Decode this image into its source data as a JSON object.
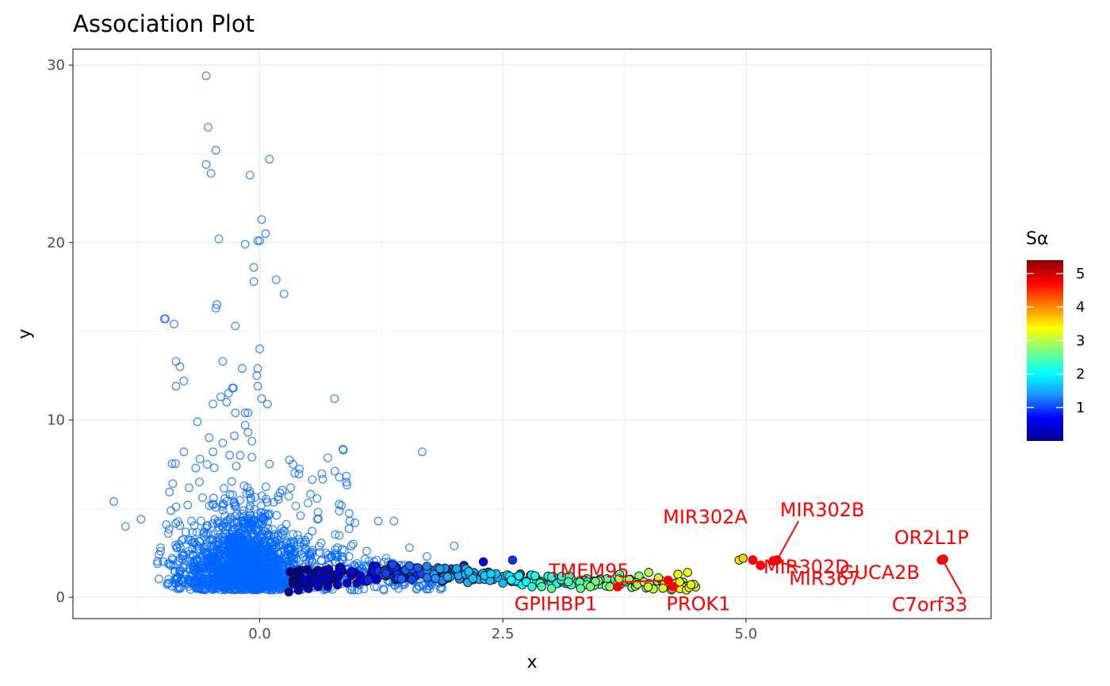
{
  "chart_data": {
    "type": "scatter",
    "title": "Association Plot",
    "xlabel": "x",
    "ylabel": "y",
    "xlim": [
      -1.92,
      7.52
    ],
    "ylim": [
      -1.2,
      30.9
    ],
    "x_ticks": [
      0.0,
      2.5,
      5.0
    ],
    "x_tick_labels": [
      "0.0",
      "2.5",
      "5.0"
    ],
    "y_ticks": [
      0,
      10,
      20,
      30
    ],
    "y_tick_labels": [
      "0",
      "10",
      "20",
      "30"
    ],
    "grid": true,
    "legend": {
      "title": "Sα",
      "placement": "right",
      "type": "colorbar",
      "range": [
        0,
        5.4
      ],
      "ticks": [
        1,
        2,
        3,
        4,
        5
      ],
      "tick_labels": [
        "1",
        "2",
        "3",
        "4",
        "5"
      ],
      "colors": [
        "#00008b",
        "#0000ff",
        "#1e90ff",
        "#00ffff",
        "#7fff7f",
        "#ffff00",
        "#ff7f00",
        "#ff0000",
        "#8b0000"
      ]
    },
    "background_points_color": "#0066ff",
    "background_points": [
      [
        -0.55,
        29.4
      ],
      [
        -0.53,
        26.5
      ],
      [
        -0.45,
        25.2
      ],
      [
        0.1,
        24.7
      ],
      [
        -0.55,
        24.4
      ],
      [
        -0.5,
        23.9
      ],
      [
        -0.1,
        23.8
      ],
      [
        0.02,
        21.3
      ],
      [
        0.06,
        20.5
      ],
      [
        -0.42,
        20.2
      ],
      [
        -0.15,
        19.9
      ],
      [
        -0.02,
        20.1
      ],
      [
        0.0,
        20.1
      ],
      [
        -0.06,
        18.6
      ],
      [
        0.17,
        17.9
      ],
      [
        -0.06,
        17.8
      ],
      [
        0.25,
        17.1
      ],
      [
        -0.44,
        16.5
      ],
      [
        -0.45,
        16.3
      ],
      [
        -0.98,
        15.7
      ],
      [
        -0.97,
        15.7
      ],
      [
        -0.88,
        15.4
      ],
      [
        -0.25,
        15.3
      ],
      [
        0.0,
        14.0
      ],
      [
        -0.38,
        13.3
      ],
      [
        -0.86,
        13.3
      ],
      [
        -0.82,
        13.0
      ],
      [
        -0.02,
        12.9
      ],
      [
        -0.18,
        12.9
      ],
      [
        -0.03,
        12.5
      ],
      [
        -0.78,
        12.2
      ],
      [
        -0.86,
        11.9
      ],
      [
        -0.27,
        11.8
      ],
      [
        -0.28,
        11.8
      ],
      [
        -0.02,
        11.9
      ],
      [
        -0.32,
        11.5
      ],
      [
        -0.4,
        11.3
      ],
      [
        -0.34,
        11.0
      ],
      [
        0.77,
        11.2
      ],
      [
        0.02,
        11.2
      ],
      [
        0.08,
        10.9
      ],
      [
        -0.48,
        10.9
      ],
      [
        -0.15,
        10.4
      ],
      [
        -0.12,
        10.4
      ],
      [
        -0.25,
        10.4
      ],
      [
        -0.64,
        9.9
      ],
      [
        -0.15,
        9.7
      ],
      [
        -0.12,
        9.3
      ],
      [
        -0.52,
        9.0
      ],
      [
        -0.26,
        9.1
      ],
      [
        -0.08,
        8.8
      ],
      [
        -0.78,
        8.2
      ],
      [
        0.86,
        8.3
      ],
      [
        1.67,
        8.2
      ],
      [
        -0.38,
        8.7
      ],
      [
        -0.48,
        8.2
      ],
      [
        -0.2,
        8.0
      ],
      [
        -0.08,
        7.9
      ],
      [
        -0.54,
        7.5
      ],
      [
        -0.24,
        7.4
      ],
      [
        0.36,
        7.0
      ],
      [
        -1.5,
        5.4
      ],
      [
        -1.38,
        4.0
      ],
      [
        -1.22,
        4.4
      ],
      [
        -0.96,
        4.1
      ],
      [
        -0.94,
        3.6
      ],
      [
        -0.86,
        5.1
      ],
      [
        -0.74,
        5.2
      ],
      [
        1.22,
        4.3
      ],
      [
        1.38,
        4.3
      ],
      [
        0.98,
        4.2
      ],
      [
        -1.02,
        2.8
      ],
      [
        -1.05,
        1.9
      ],
      [
        2.0,
        2.9
      ],
      [
        1.72,
        2.3
      ],
      [
        1.54,
        2.8
      ],
      [
        0.8,
        2.8
      ],
      [
        0.6,
        4.8
      ],
      [
        -0.62,
        6.5
      ],
      [
        0.3,
        5.7
      ],
      [
        0.42,
        4.6
      ],
      [
        -0.7,
        4.3
      ],
      [
        -0.8,
        3.2
      ],
      [
        0.5,
        3.4
      ],
      [
        0.96,
        3.0
      ],
      [
        1.1,
        2.6
      ],
      [
        1.3,
        2.2
      ],
      [
        0.68,
        2.5
      ],
      [
        0.2,
        2.1
      ],
      [
        -0.5,
        2.3
      ],
      [
        -0.9,
        2.2
      ],
      [
        1.6,
        1.5
      ],
      [
        1.82,
        1.2
      ]
    ],
    "mid_points": [
      {
        "x": 0.3,
        "y": 0.3,
        "s": 0.2
      },
      {
        "x": 0.4,
        "y": 0.4,
        "s": 0.3
      },
      {
        "x": 0.5,
        "y": 0.5,
        "s": 0.3
      },
      {
        "x": 0.6,
        "y": 0.6,
        "s": 0.4
      },
      {
        "x": 0.7,
        "y": 0.6,
        "s": 0.4
      },
      {
        "x": 0.8,
        "y": 0.7,
        "s": 0.4
      },
      {
        "x": 0.9,
        "y": 0.8,
        "s": 0.5
      },
      {
        "x": 1.0,
        "y": 0.8,
        "s": 0.5
      },
      {
        "x": 1.1,
        "y": 0.9,
        "s": 0.6
      },
      {
        "x": 1.2,
        "y": 1.0,
        "s": 0.6
      },
      {
        "x": 1.3,
        "y": 1.2,
        "s": 0.6
      },
      {
        "x": 1.4,
        "y": 1.0,
        "s": 0.7
      },
      {
        "x": 1.5,
        "y": 1.1,
        "s": 0.7
      },
      {
        "x": 1.6,
        "y": 1.3,
        "s": 0.8
      },
      {
        "x": 1.7,
        "y": 1.6,
        "s": 0.8
      },
      {
        "x": 1.8,
        "y": 1.2,
        "s": 0.9
      },
      {
        "x": 1.9,
        "y": 1.0,
        "s": 0.9
      },
      {
        "x": 2.0,
        "y": 1.4,
        "s": 1.0
      },
      {
        "x": 2.1,
        "y": 1.8,
        "s": 0.8
      },
      {
        "x": 2.3,
        "y": 2.0,
        "s": 0.6
      },
      {
        "x": 2.6,
        "y": 2.1,
        "s": 0.9
      },
      {
        "x": 2.2,
        "y": 1.0,
        "s": 1.2
      },
      {
        "x": 2.4,
        "y": 1.0,
        "s": 1.4
      },
      {
        "x": 2.5,
        "y": 0.8,
        "s": 1.6
      },
      {
        "x": 2.6,
        "y": 0.9,
        "s": 1.8
      },
      {
        "x": 2.7,
        "y": 0.7,
        "s": 2.0
      },
      {
        "x": 2.8,
        "y": 0.6,
        "s": 2.2
      },
      {
        "x": 2.9,
        "y": 0.6,
        "s": 2.4
      },
      {
        "x": 3.0,
        "y": 0.5,
        "s": 2.5
      },
      {
        "x": 3.1,
        "y": 1.0,
        "s": 2.2
      },
      {
        "x": 3.2,
        "y": 1.1,
        "s": 2.3
      },
      {
        "x": 3.3,
        "y": 0.5,
        "s": 2.6
      },
      {
        "x": 3.4,
        "y": 0.6,
        "s": 2.7
      },
      {
        "x": 3.5,
        "y": 1.0,
        "s": 2.6
      },
      {
        "x": 3.6,
        "y": 0.6,
        "s": 2.8
      },
      {
        "x": 3.7,
        "y": 1.3,
        "s": 2.5
      },
      {
        "x": 3.8,
        "y": 1.0,
        "s": 2.9
      },
      {
        "x": 3.9,
        "y": 1.2,
        "s": 2.8
      },
      {
        "x": 4.0,
        "y": 1.4,
        "s": 3.0
      },
      {
        "x": 4.1,
        "y": 1.1,
        "s": 3.1
      },
      {
        "x": 4.3,
        "y": 1.3,
        "s": 3.3
      },
      {
        "x": 4.4,
        "y": 1.4,
        "s": 3.4
      },
      {
        "x": 4.93,
        "y": 2.1,
        "s": 3.5
      },
      {
        "x": 4.97,
        "y": 2.2,
        "s": 3.6
      }
    ],
    "labeled_points": [
      {
        "label": "GPIHBP1",
        "x": 3.68,
        "y": 0.6,
        "s": 5.4
      },
      {
        "label": "TMEM95",
        "x": 4.2,
        "y": 0.95,
        "s": 5.4
      },
      {
        "label": "PROK1",
        "x": 4.25,
        "y": 0.6,
        "s": 5.4
      },
      {
        "label": "MIR302A",
        "x": 5.07,
        "y": 2.1,
        "s": 5.4
      },
      {
        "label": "MIR302D",
        "x": 5.15,
        "y": 1.8,
        "s": 5.4
      },
      {
        "label": "MIR302B",
        "x": 5.32,
        "y": 2.1,
        "s": 5.4
      },
      {
        "label": "MIR367",
        "x": 5.28,
        "y": 2.05,
        "s": 5.4
      },
      {
        "label": "OR2L1P",
        "x": 7.03,
        "y": 2.15,
        "s": 5.4
      },
      {
        "label": "GUCA2B",
        "x": 7.01,
        "y": 2.1,
        "s": 5.4
      },
      {
        "label": "C7orf33",
        "x": 7.02,
        "y": 2.12,
        "s": 5.4
      }
    ],
    "labeled_point_color": "#ff0000"
  }
}
